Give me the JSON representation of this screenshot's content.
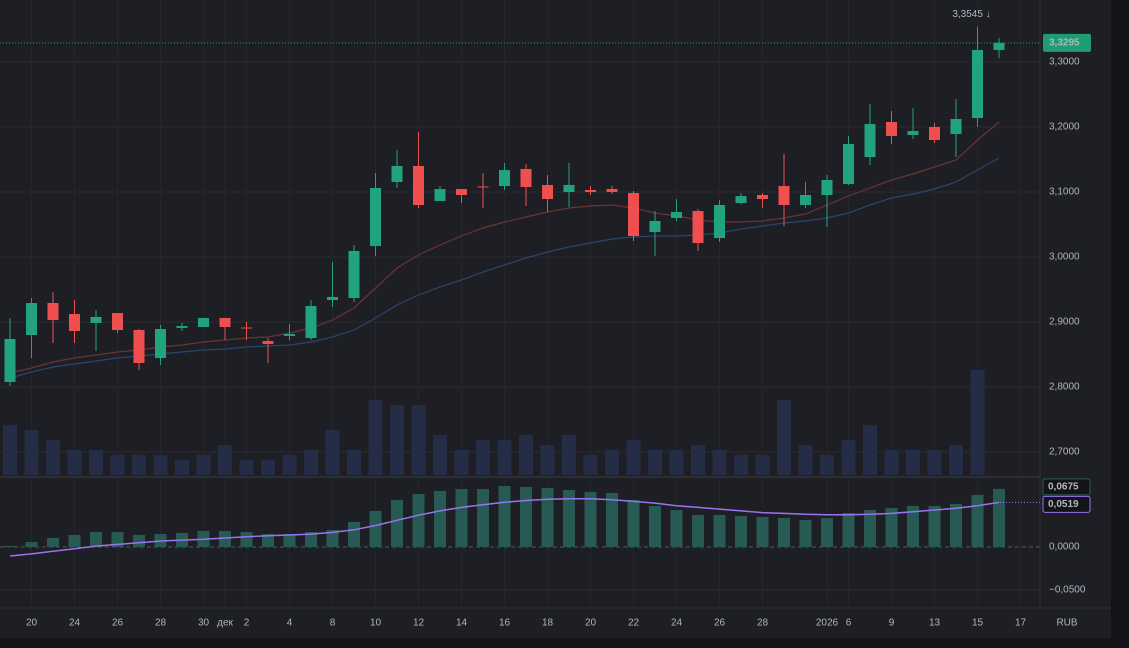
{
  "chart_data": [
    {
      "type": "candlestick",
      "categories": [
        null,
        "20",
        null,
        "24",
        null,
        "26",
        null,
        "28",
        null,
        "30",
        "дек",
        "2",
        null,
        "4",
        null,
        "8",
        null,
        "10",
        null,
        "12",
        null,
        "14",
        null,
        "16",
        null,
        "18",
        null,
        "20",
        null,
        "22",
        null,
        "24",
        null,
        "26",
        null,
        "28",
        null,
        null,
        "2026",
        "6",
        null,
        "9",
        null,
        "13",
        null,
        "15",
        null,
        "17"
      ],
      "open": [
        2.8077,
        2.88,
        2.9292,
        2.9123,
        2.8985,
        2.9138,
        2.8877,
        2.8446,
        2.8908,
        2.8923,
        2.9062,
        2.8915,
        2.8708,
        2.8785,
        2.8754,
        2.9338,
        2.9369,
        3.0169,
        3.1154,
        3.14,
        3.0862,
        3.1046,
        3.1085,
        3.1092,
        3.1354,
        3.1108,
        3.1,
        3.1031,
        3.1046,
        3.0985,
        3.0385,
        3.06,
        3.0708,
        3.0292,
        3.0831,
        3.0954,
        3.1092,
        3.08,
        3.0954,
        3.1123,
        3.1538,
        3.2077,
        3.1877,
        3.2,
        3.1892,
        3.2138,
        3.3185,
        null
      ],
      "high": [
        2.9062,
        2.9369,
        2.9462,
        2.9338,
        2.9185,
        2.9138,
        2.8892,
        2.8954,
        2.8985,
        2.9062,
        2.9062,
        2.9,
        2.8754,
        2.8969,
        2.9338,
        2.9923,
        3.0185,
        3.1292,
        3.1646,
        3.1923,
        3.1092,
        3.1046,
        3.1292,
        3.1446,
        3.1431,
        3.1262,
        3.1446,
        3.1092,
        3.1092,
        3.1015,
        3.0708,
        3.0892,
        3.0738,
        3.0877,
        3.0985,
        3.0985,
        3.1585,
        3.1154,
        3.1262,
        3.1862,
        3.2354,
        3.2246,
        3.2292,
        3.2062,
        3.2431,
        3.3545,
        3.3369,
        null
      ],
      "low": [
        2.8015,
        2.8446,
        2.8677,
        2.8677,
        2.8554,
        2.8831,
        2.8262,
        2.8338,
        2.8862,
        2.8923,
        2.8723,
        2.8723,
        2.8369,
        2.8723,
        2.8723,
        2.9231,
        2.9308,
        3.0015,
        3.1062,
        3.0754,
        3.0862,
        3.0831,
        3.0754,
        3.1031,
        3.0785,
        3.0692,
        3.0769,
        3.0954,
        3.0969,
        3.0246,
        3.0015,
        3.0554,
        3.0092,
        3.0231,
        3.0815,
        3.0754,
        3.0477,
        3.0754,
        3.0462,
        3.1108,
        3.1415,
        3.1738,
        3.1815,
        3.1754,
        3.1538,
        3.2,
        3.3062,
        null
      ],
      "close": [
        2.8738,
        2.9292,
        2.9031,
        2.8862,
        2.9077,
        2.8877,
        2.8369,
        2.8892,
        2.8938,
        2.9062,
        2.8923,
        2.8908,
        2.8662,
        2.8815,
        2.9246,
        2.9385,
        3.0092,
        3.1062,
        3.14,
        3.08,
        3.1046,
        3.0954,
        3.1077,
        3.1338,
        3.1077,
        3.0892,
        3.1108,
        3.1,
        3.1,
        3.0323,
        3.0554,
        3.0692,
        3.0215,
        3.08,
        3.0938,
        3.0892,
        3.08,
        3.0954,
        3.1185,
        3.1738,
        3.2046,
        3.1862,
        3.1938,
        3.18,
        3.2123,
        3.3185,
        3.3295,
        null
      ],
      "up_color": "#22a37f",
      "down_color": "#ef4f4f",
      "series": [
        {
          "color": "#6b3434",
          "values": [
            2.8215,
            2.8292,
            2.8385,
            2.8446,
            2.8492,
            2.8538,
            2.8569,
            2.8615,
            2.8646,
            2.8692,
            2.8723,
            2.8754,
            2.8769,
            2.8831,
            2.8908,
            2.9031,
            2.9215,
            2.9523,
            2.9831,
            3.0031,
            3.0185,
            3.0323,
            3.0446,
            3.0538,
            3.0615,
            3.0692,
            3.0754,
            3.0785,
            3.08,
            3.0754,
            3.0677,
            3.0631,
            3.0569,
            3.0538,
            3.0538,
            3.0554,
            3.06,
            3.0662,
            3.08,
            3.0938,
            3.1062,
            3.1185,
            3.1277,
            3.1385,
            3.1492,
            3.18,
            3.2077,
            null
          ]
        },
        {
          "color": "#2c4470",
          "values": [
            2.8138,
            2.8231,
            2.8308,
            2.8354,
            2.84,
            2.8446,
            2.8477,
            2.8508,
            2.8538,
            2.8569,
            2.8585,
            2.8615,
            2.8631,
            2.8646,
            2.8692,
            2.8769,
            2.8877,
            2.9062,
            2.9262,
            2.9415,
            2.9538,
            2.9646,
            2.9769,
            2.9877,
            2.9985,
            3.0077,
            3.0154,
            3.0215,
            3.0277,
            3.0308,
            3.0323,
            3.0323,
            3.0338,
            3.0369,
            3.0431,
            3.0477,
            3.0523,
            3.0554,
            3.06,
            3.0677,
            3.08,
            3.0908,
            3.0969,
            3.1046,
            3.1154,
            3.1338,
            3.1523,
            null
          ]
        }
      ],
      "volume": {
        "color": "#252c45",
        "values": [
          50,
          45,
          35,
          25,
          25,
          20,
          20,
          20,
          15,
          20,
          30,
          15,
          15,
          20,
          25,
          45,
          25,
          75,
          70,
          70,
          40,
          25,
          35,
          35,
          40,
          30,
          40,
          20,
          25,
          35,
          25,
          25,
          30,
          25,
          20,
          20,
          75,
          30,
          20,
          35,
          50,
          25,
          25,
          25,
          30,
          105,
          0,
          null
        ]
      },
      "ylim": [
        2.6646,
        3.3954
      ],
      "yticks": [
        {
          "value": 2.7,
          "label": "2,7000"
        },
        {
          "value": 2.8,
          "label": "2,8000"
        },
        {
          "value": 2.9,
          "label": "2,9000"
        },
        {
          "value": 3.0,
          "label": "3,0000"
        },
        {
          "value": 3.1,
          "label": "3,1000"
        },
        {
          "value": 3.2,
          "label": "3,2000"
        },
        {
          "value": 3.3,
          "label": "3,3000"
        }
      ],
      "annotation": {
        "value": 3.3545,
        "label": "3,3545 ↓"
      },
      "last_price": {
        "value": 3.3295,
        "label": "3,3295",
        "color": "#1f9d72"
      },
      "currency": "RUB"
    },
    {
      "type": "bar",
      "values": [
        0.0012,
        0.0058,
        0.0105,
        0.014,
        0.0174,
        0.0174,
        0.014,
        0.0151,
        0.0163,
        0.0186,
        0.0186,
        0.0174,
        0.0151,
        0.0151,
        0.0174,
        0.0198,
        0.0291,
        0.0419,
        0.0547,
        0.0616,
        0.0651,
        0.0674,
        0.0674,
        0.0709,
        0.0698,
        0.0686,
        0.0663,
        0.064,
        0.0628,
        0.0547,
        0.0477,
        0.043,
        0.0372,
        0.0372,
        0.036,
        0.0349,
        0.0337,
        0.0314,
        0.0337,
        0.0395,
        0.043,
        0.0453,
        0.0477,
        0.0477,
        0.05,
        0.0605,
        0.0675,
        null
      ],
      "color": "#285a55",
      "series": [
        {
          "color": "#9a73ef",
          "values": [
            -0.0105,
            -0.008,
            -0.005,
            -0.002,
            0.001,
            0.003,
            0.005,
            0.007,
            0.008,
            0.009,
            0.0105,
            0.012,
            0.013,
            0.014,
            0.015,
            0.017,
            0.02,
            0.025,
            0.031,
            0.037,
            0.042,
            0.046,
            0.049,
            0.052,
            0.054,
            0.0555,
            0.056,
            0.056,
            0.055,
            0.053,
            0.051,
            0.048,
            0.046,
            0.044,
            0.042,
            0.04,
            0.039,
            0.038,
            0.0375,
            0.0375,
            0.038,
            0.039,
            0.041,
            0.043,
            0.045,
            0.048,
            0.0519,
            null
          ]
        }
      ],
      "ylim": [
        -0.0674,
        0.0802
      ],
      "yticks": [
        {
          "value": -0.05,
          "label": "−0,0500"
        },
        {
          "value": 0,
          "label": "0,0000"
        }
      ],
      "last_labels": [
        {
          "value": 0.0675,
          "label": "0,0675"
        },
        {
          "value": 0.0519,
          "label": "0,0519"
        }
      ]
    }
  ]
}
